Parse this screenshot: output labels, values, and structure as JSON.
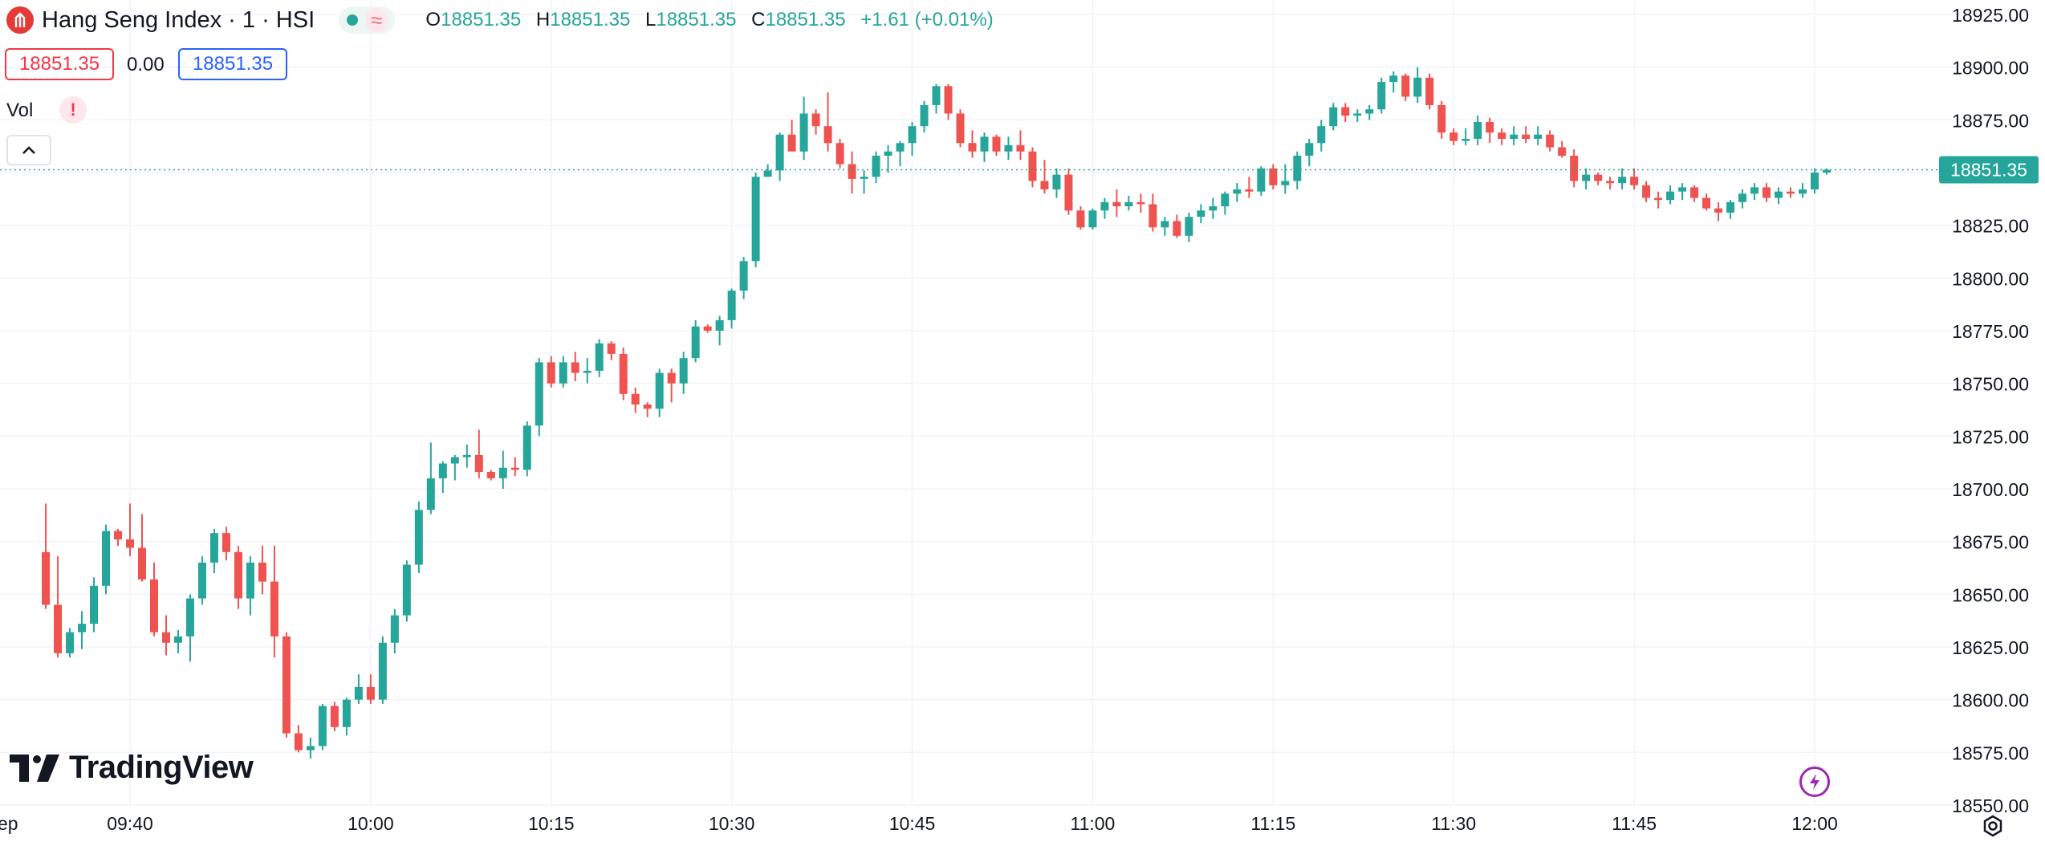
{
  "header": {
    "title": "Hang Seng Index · 1 · HSI",
    "ohlc": {
      "o_label": "O",
      "o_value": "18851.35",
      "h_label": "H",
      "h_value": "18851.35",
      "l_label": "L",
      "l_value": "18851.35",
      "c_label": "C",
      "c_value": "18851.35",
      "change": "+1.61 (+0.01%)"
    },
    "sell_price": "18851.35",
    "spread": "0.00",
    "buy_price": "18851.35",
    "volume_label": "Vol",
    "warning_icon_text": "!"
  },
  "logo": {
    "text": "TradingView"
  },
  "icons": {
    "status": "status-dot-icon",
    "wave": "wave-icon",
    "collapse": "chevron-up-icon",
    "bolt": "lightning-icon",
    "settings": "gear-icon"
  },
  "colors": {
    "up": "#26a69a",
    "down": "#ef5350",
    "price_line": "#26a69a",
    "grid": "#f0f3fa"
  },
  "chart_data": {
    "type": "candlestick",
    "ylim": [
      18550,
      18925
    ],
    "y_ticks": [
      "18925.00",
      "18900.00",
      "18875.00",
      "18850.00",
      "18825.00",
      "18800.00",
      "18775.00",
      "18750.00",
      "18725.00",
      "18700.00",
      "18675.00",
      "18650.00",
      "18625.00",
      "18600.00",
      "18575.00",
      "18550.00"
    ],
    "x_ticks": [
      "ep",
      "09:40",
      "10:00",
      "10:15",
      "10:30",
      "10:45",
      "11:00",
      "11:15",
      "11:30",
      "11:45",
      "12:00"
    ],
    "x_tick_times": [
      null,
      "09:40",
      "10:00",
      "10:15",
      "10:30",
      "10:45",
      "11:00",
      "11:15",
      "11:30",
      "11:45",
      "12:00"
    ],
    "last_price": 18851.35,
    "last_price_label": "18851.35",
    "candles": [
      [
        "09:33",
        18670,
        18693,
        18643,
        18645
      ],
      [
        "09:34",
        18645,
        18668,
        18620,
        18622
      ],
      [
        "09:35",
        18622,
        18634,
        18620,
        18632
      ],
      [
        "09:36",
        18632,
        18642,
        18624,
        18636
      ],
      [
        "09:37",
        18636,
        18658,
        18632,
        18654
      ],
      [
        "09:38",
        18654,
        18683,
        18650,
        18680
      ],
      [
        "09:39",
        18680,
        18681,
        18673,
        18676
      ],
      [
        "09:40",
        18676,
        18693,
        18668,
        18672
      ],
      [
        "09:41",
        18672,
        18688,
        18656,
        18657
      ],
      [
        "09:42",
        18657,
        18665,
        18630,
        18632
      ],
      [
        "09:43",
        18632,
        18640,
        18621,
        18627
      ],
      [
        "09:44",
        18627,
        18633,
        18622,
        18630
      ],
      [
        "09:45",
        18630,
        18650,
        18618,
        18648
      ],
      [
        "09:46",
        18648,
        18668,
        18645,
        18665
      ],
      [
        "09:47",
        18665,
        18681,
        18660,
        18679
      ],
      [
        "09:48",
        18679,
        18682,
        18666,
        18670
      ],
      [
        "09:49",
        18670,
        18673,
        18643,
        18648
      ],
      [
        "09:50",
        18648,
        18668,
        18640,
        18665
      ],
      [
        "09:51",
        18665,
        18673,
        18650,
        18656
      ],
      [
        "09:52",
        18656,
        18673,
        18620,
        18630
      ],
      [
        "09:53",
        18630,
        18632,
        18582,
        18584
      ],
      [
        "09:54",
        18584,
        18588,
        18575,
        18576
      ],
      [
        "09:55",
        18576,
        18582,
        18572,
        18578
      ],
      [
        "09:56",
        18578,
        18598,
        18576,
        18597
      ],
      [
        "09:57",
        18597,
        18599,
        18585,
        18587
      ],
      [
        "09:58",
        18587,
        18601,
        18583,
        18600
      ],
      [
        "09:59",
        18600,
        18612,
        18598,
        18606
      ],
      [
        "10:00",
        18606,
        18612,
        18598,
        18600
      ],
      [
        "10:01",
        18600,
        18630,
        18598,
        18627
      ],
      [
        "10:02",
        18627,
        18643,
        18622,
        18640
      ],
      [
        "10:03",
        18640,
        18666,
        18637,
        18664
      ],
      [
        "10:04",
        18664,
        18694,
        18660,
        18690
      ],
      [
        "10:05",
        18690,
        18722,
        18688,
        18705
      ],
      [
        "10:06",
        18705,
        18713,
        18698,
        18712
      ],
      [
        "10:07",
        18712,
        18716,
        18704,
        18715
      ],
      [
        "10:08",
        18715,
        18721,
        18710,
        18716
      ],
      [
        "10:09",
        18716,
        18728,
        18705,
        18708
      ],
      [
        "10:10",
        18708,
        18709,
        18704,
        18705
      ],
      [
        "10:11",
        18705,
        18718,
        18700,
        18710
      ],
      [
        "10:12",
        18710,
        18715,
        18706,
        18709
      ],
      [
        "10:13",
        18709,
        18732,
        18706,
        18730
      ],
      [
        "10:14",
        18730,
        18762,
        18725,
        18760
      ],
      [
        "10:15",
        18760,
        18763,
        18748,
        18750
      ],
      [
        "10:16",
        18750,
        18763,
        18748,
        18760
      ],
      [
        "10:17",
        18760,
        18765,
        18751,
        18755
      ],
      [
        "10:18",
        18755,
        18762,
        18750,
        18756
      ],
      [
        "10:19",
        18756,
        18771,
        18753,
        18769
      ],
      [
        "10:20",
        18769,
        18770,
        18761,
        18764
      ],
      [
        "10:21",
        18764,
        18767,
        18742,
        18745
      ],
      [
        "10:22",
        18745,
        18748,
        18736,
        18740
      ],
      [
        "10:23",
        18740,
        18741,
        18734,
        18738
      ],
      [
        "10:24",
        18738,
        18757,
        18734,
        18755
      ],
      [
        "10:25",
        18755,
        18757,
        18741,
        18750
      ],
      [
        "10:26",
        18750,
        18765,
        18745,
        18762
      ],
      [
        "10:27",
        18762,
        18780,
        18760,
        18777
      ],
      [
        "10:28",
        18777,
        18778,
        18774,
        18775
      ],
      [
        "10:29",
        18775,
        18782,
        18768,
        18780
      ],
      [
        "10:30",
        18780,
        18795,
        18776,
        18794
      ],
      [
        "10:31",
        18794,
        18810,
        18790,
        18808
      ],
      [
        "10:32",
        18808,
        18850,
        18805,
        18848
      ],
      [
        "10:33",
        18848,
        18854,
        18848,
        18851
      ],
      [
        "10:34",
        18851,
        18869,
        18846,
        18868
      ],
      [
        "10:35",
        18868,
        18875,
        18863,
        18860
      ],
      [
        "10:36",
        18860,
        18886,
        18856,
        18878
      ],
      [
        "10:37",
        18878,
        18880,
        18868,
        18872
      ],
      [
        "10:38",
        18872,
        18888,
        18860,
        18864
      ],
      [
        "10:39",
        18864,
        18866,
        18852,
        18854
      ],
      [
        "10:40",
        18854,
        18860,
        18840,
        18847
      ],
      [
        "10:41",
        18847,
        18851,
        18840,
        18848
      ],
      [
        "10:42",
        18848,
        18860,
        18845,
        18858
      ],
      [
        "10:43",
        18858,
        18863,
        18850,
        18860
      ],
      [
        "10:44",
        18860,
        18865,
        18853,
        18864
      ],
      [
        "10:45",
        18864,
        18874,
        18858,
        18872
      ],
      [
        "10:46",
        18872,
        18884,
        18869,
        18882
      ],
      [
        "10:47",
        18882,
        18892,
        18878,
        18891
      ],
      [
        "10:48",
        18891,
        18892,
        18875,
        18878
      ],
      [
        "10:49",
        18878,
        18880,
        18862,
        18864
      ],
      [
        "10:50",
        18864,
        18870,
        18857,
        18860
      ],
      [
        "10:51",
        18860,
        18869,
        18855,
        18867
      ],
      [
        "10:52",
        18867,
        18868,
        18858,
        18860
      ],
      [
        "10:53",
        18860,
        18867,
        18856,
        18863
      ],
      [
        "10:54",
        18863,
        18870,
        18856,
        18860
      ],
      [
        "10:55",
        18860,
        18862,
        18843,
        18846
      ],
      [
        "10:56",
        18846,
        18856,
        18840,
        18842
      ],
      [
        "10:57",
        18842,
        18852,
        18838,
        18849
      ],
      [
        "10:58",
        18849,
        18852,
        18830,
        18832
      ],
      [
        "10:59",
        18832,
        18834,
        18823,
        18824
      ],
      [
        "11:00",
        18824,
        18833,
        18823,
        18832
      ],
      [
        "11:01",
        18832,
        18838,
        18828,
        18836
      ],
      [
        "11:02",
        18836,
        18842,
        18829,
        18834
      ],
      [
        "11:03",
        18834,
        18839,
        18832,
        18836
      ],
      [
        "11:04",
        18836,
        18840,
        18831,
        18835
      ],
      [
        "11:05",
        18835,
        18840,
        18822,
        18824
      ],
      [
        "11:06",
        18824,
        18829,
        18820,
        18827
      ],
      [
        "11:07",
        18827,
        18830,
        18819,
        18820
      ],
      [
        "11:08",
        18820,
        18831,
        18817,
        18829
      ],
      [
        "11:09",
        18829,
        18835,
        18826,
        18832
      ],
      [
        "11:10",
        18832,
        18838,
        18828,
        18834
      ],
      [
        "11:11",
        18834,
        18841,
        18830,
        18840
      ],
      [
        "11:12",
        18840,
        18845,
        18836,
        18842
      ],
      [
        "11:13",
        18842,
        18848,
        18838,
        18841
      ],
      [
        "11:14",
        18841,
        18853,
        18839,
        18852
      ],
      [
        "11:15",
        18852,
        18854,
        18842,
        18844
      ],
      [
        "11:16",
        18844,
        18854,
        18840,
        18846
      ],
      [
        "11:17",
        18846,
        18860,
        18842,
        18858
      ],
      [
        "11:18",
        18858,
        18866,
        18853,
        18864
      ],
      [
        "11:19",
        18864,
        18875,
        18860,
        18872
      ],
      [
        "11:20",
        18872,
        18883,
        18870,
        18881
      ],
      [
        "11:21",
        18881,
        18883,
        18874,
        18877
      ],
      [
        "11:22",
        18877,
        18880,
        18874,
        18878
      ],
      [
        "11:23",
        18878,
        18882,
        18875,
        18880
      ],
      [
        "11:24",
        18880,
        18895,
        18878,
        18893
      ],
      [
        "11:25",
        18893,
        18898,
        18888,
        18896
      ],
      [
        "11:26",
        18896,
        18897,
        18884,
        18886
      ],
      [
        "11:27",
        18886,
        18900,
        18883,
        18895
      ],
      [
        "11:28",
        18895,
        18897,
        18880,
        18882
      ],
      [
        "11:29",
        18882,
        18884,
        18866,
        18869
      ],
      [
        "11:30",
        18869,
        18871,
        18863,
        18865
      ],
      [
        "11:31",
        18865,
        18871,
        18863,
        18866
      ],
      [
        "11:32",
        18866,
        18877,
        18863,
        18874
      ],
      [
        "11:33",
        18874,
        18876,
        18864,
        18869
      ],
      [
        "11:34",
        18869,
        18871,
        18863,
        18866
      ],
      [
        "11:35",
        18866,
        18872,
        18863,
        18868
      ],
      [
        "11:36",
        18868,
        18872,
        18864,
        18866
      ],
      [
        "11:37",
        18866,
        18872,
        18863,
        18868
      ],
      [
        "11:38",
        18868,
        18870,
        18860,
        18862
      ],
      [
        "11:39",
        18862,
        18865,
        18857,
        18858
      ],
      [
        "11:40",
        18858,
        18861,
        18843,
        18846
      ],
      [
        "11:41",
        18846,
        18852,
        18842,
        18849
      ],
      [
        "11:42",
        18849,
        18850,
        18844,
        18846
      ],
      [
        "11:43",
        18846,
        18848,
        18842,
        18845
      ],
      [
        "11:44",
        18845,
        18852,
        18842,
        18848
      ],
      [
        "11:45",
        18848,
        18852,
        18842,
        18844
      ],
      [
        "11:46",
        18844,
        18846,
        18836,
        18838
      ],
      [
        "11:47",
        18838,
        18841,
        18833,
        18837
      ],
      [
        "11:48",
        18837,
        18844,
        18835,
        18841
      ],
      [
        "11:49",
        18841,
        18845,
        18837,
        18843
      ],
      [
        "11:50",
        18843,
        18844,
        18836,
        18838
      ],
      [
        "11:51",
        18838,
        18840,
        18832,
        18833
      ],
      [
        "11:52",
        18833,
        18836,
        18827,
        18831
      ],
      [
        "11:53",
        18831,
        18837,
        18828,
        18836
      ],
      [
        "11:54",
        18836,
        18842,
        18833,
        18840
      ],
      [
        "11:55",
        18840,
        18845,
        18837,
        18843
      ],
      [
        "11:56",
        18843,
        18845,
        18836,
        18838
      ],
      [
        "11:57",
        18838,
        18843,
        18835,
        18841
      ],
      [
        "11:58",
        18841,
        18843,
        18838,
        18840
      ],
      [
        "11:59",
        18840,
        18845,
        18838,
        18842
      ],
      [
        "12:00",
        18842,
        18852,
        18840,
        18850
      ],
      [
        "12:01",
        18850,
        18852,
        18849,
        18851.35
      ]
    ]
  }
}
